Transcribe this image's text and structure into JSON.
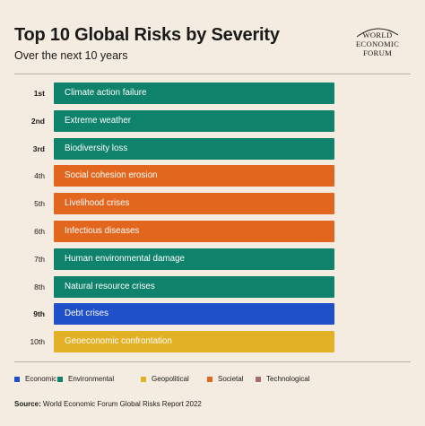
{
  "header": {
    "title": "Top 10 Global Risks by Severity",
    "subtitle": "Over the next 10 years",
    "logo_lines": [
      "WORLD",
      "ECONOMIC",
      "FORUM"
    ]
  },
  "colors": {
    "Economic": "#1f4fc9",
    "Environmental": "#0e826b",
    "Geopolitical": "#e3b125",
    "Societal": "#e3661e",
    "Technological": "#a86a6a"
  },
  "legend": [
    "Economic",
    "Environmental",
    "Geopolitical",
    "Societal",
    "Technological"
  ],
  "source": {
    "label": "Source:",
    "text": "World Economic Forum Global Risks Report 2022"
  },
  "chart_data": {
    "type": "table",
    "title": "Top 10 Global Risks by Severity",
    "subtitle": "Over the next 10 years",
    "rows": [
      {
        "rank": "1st",
        "risk": "Climate action failure",
        "category": "Environmental"
      },
      {
        "rank": "2nd",
        "risk": "Extreme weather",
        "category": "Environmental"
      },
      {
        "rank": "3rd",
        "risk": "Biodiversity loss",
        "category": "Environmental"
      },
      {
        "rank": "4th",
        "risk": "Social cohesion erosion",
        "category": "Societal"
      },
      {
        "rank": "5th",
        "risk": "Livelihood crises",
        "category": "Societal"
      },
      {
        "rank": "6th",
        "risk": "Infectious diseases",
        "category": "Societal"
      },
      {
        "rank": "7th",
        "risk": "Human environmental damage",
        "category": "Environmental"
      },
      {
        "rank": "8th",
        "risk": "Natural resource crises",
        "category": "Environmental"
      },
      {
        "rank": "9th",
        "risk": "Debt crises",
        "category": "Economic"
      },
      {
        "rank": "10th",
        "risk": "Geoeconomic confrontation",
        "category": "Geopolitical"
      }
    ],
    "legend_position": "bottom"
  }
}
